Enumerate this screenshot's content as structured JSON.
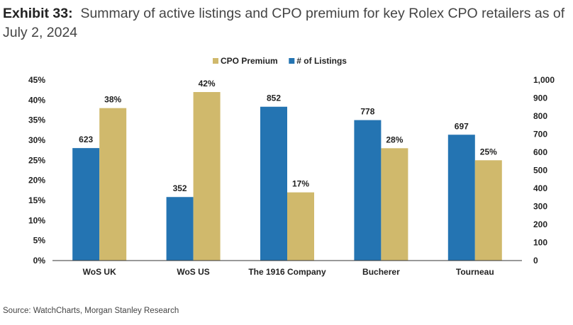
{
  "header": {
    "exhibit_label": "Exhibit 33:",
    "title": "Summary of active listings and CPO premium for key Rolex CPO retailers as of July 2, 2024"
  },
  "footer": {
    "source": "Source: WatchCharts, Morgan Stanley Research"
  },
  "colors": {
    "cpo": "#D0B96C",
    "listings": "#2474B2",
    "text": "#222222"
  },
  "chart_data": {
    "type": "bar",
    "categories": [
      "WoS UK",
      "WoS US",
      "The 1916 Company",
      "Bucherer",
      "Tourneau"
    ],
    "series": [
      {
        "name": "# of Listings",
        "axis": "right",
        "values": [
          623,
          352,
          852,
          778,
          697
        ],
        "labels": [
          "623",
          "352",
          "852",
          "778",
          "697"
        ]
      },
      {
        "name": "CPO Premium",
        "axis": "left",
        "values": [
          38,
          42,
          17,
          28,
          25
        ],
        "labels": [
          "38%",
          "42%",
          "17%",
          "28%",
          "25%"
        ]
      }
    ],
    "legend": [
      {
        "name": "CPO Premium",
        "color": "#D0B96C"
      },
      {
        "name": "# of Listings",
        "color": "#2474B2"
      }
    ],
    "y_left": {
      "min": 0,
      "max": 45,
      "step": 5,
      "ticks": [
        "0%",
        "5%",
        "10%",
        "15%",
        "20%",
        "25%",
        "30%",
        "35%",
        "40%",
        "45%"
      ]
    },
    "y_right": {
      "min": 0,
      "max": 1000,
      "step": 100,
      "ticks": [
        "0",
        "100",
        "200",
        "300",
        "400",
        "500",
        "600",
        "700",
        "800",
        "900",
        "1,000"
      ]
    },
    "legend_position": "top-center",
    "grid": false
  }
}
